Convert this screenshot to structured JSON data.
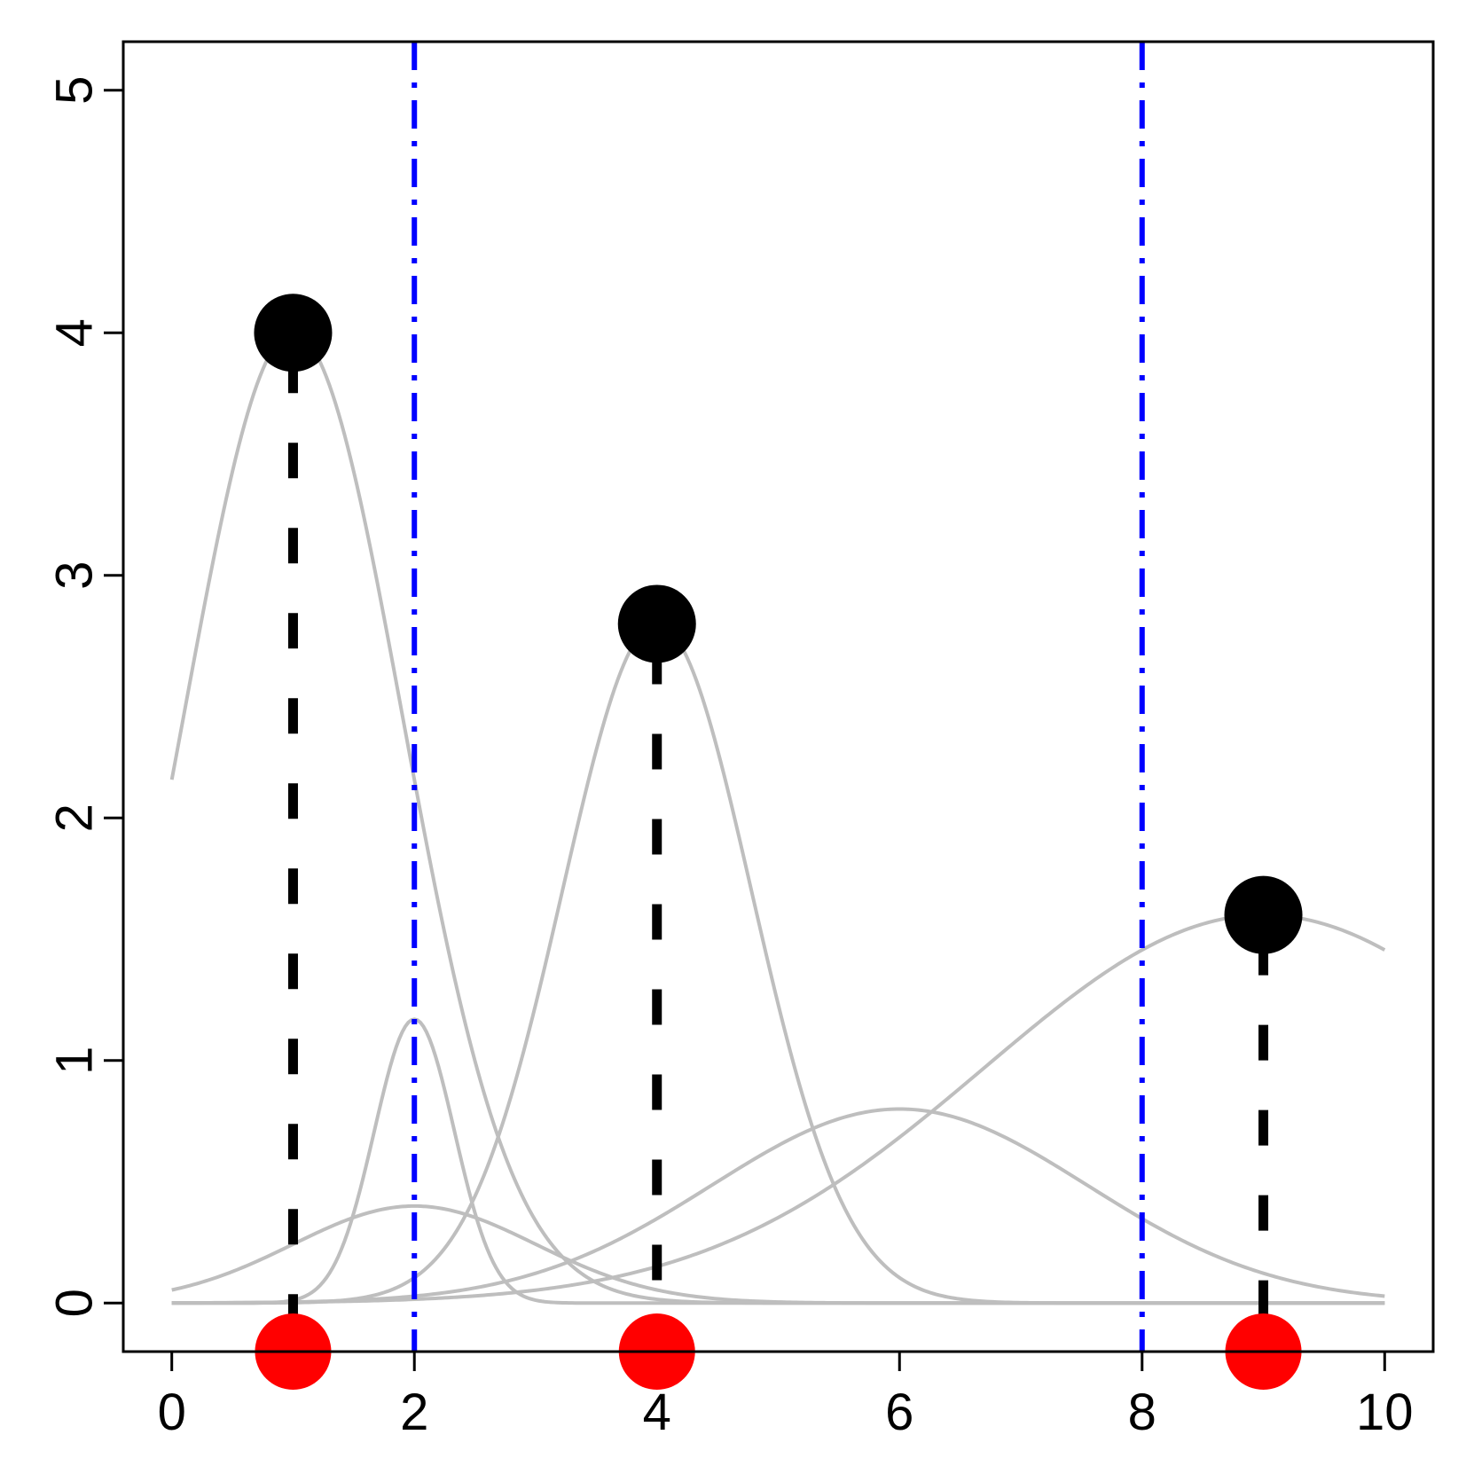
{
  "chart_data": {
    "type": "line",
    "title": "",
    "xlabel": "",
    "ylabel": "",
    "xlim": [
      -0.4,
      10.4
    ],
    "ylim": [
      -0.2,
      5.2
    ],
    "grid": false,
    "legend": "none",
    "x_ticks": [
      "0",
      "2",
      "4",
      "6",
      "8",
      "10"
    ],
    "y_ticks": [
      "0",
      "1",
      "2",
      "3",
      "4",
      "5"
    ],
    "colors": {
      "curves": "#bebebe",
      "peaks": "#000000",
      "stems": "#000000",
      "base_points": "#ff0000",
      "vlines": "#0000ff"
    },
    "curves": [
      {
        "kind": "gaussian",
        "mean": 1,
        "amplitude": 4,
        "sd": 0.9
      },
      {
        "kind": "gaussian",
        "mean": 4,
        "amplitude": 2.8,
        "sd": 0.78
      },
      {
        "kind": "gaussian",
        "mean": 9,
        "amplitude": 1.6,
        "sd": 2.3
      },
      {
        "kind": "gaussian",
        "mean": 2,
        "amplitude": 1.17,
        "sd": 0.33
      },
      {
        "kind": "gaussian",
        "mean": 2,
        "amplitude": 0.4,
        "sd": 1.0
      },
      {
        "kind": "gaussian",
        "mean": 6,
        "amplitude": 0.8,
        "sd": 1.55
      }
    ],
    "peaks": [
      {
        "x": 1,
        "y": 4
      },
      {
        "x": 4,
        "y": 2.8
      },
      {
        "x": 9,
        "y": 1.6
      }
    ],
    "base_points": [
      {
        "x": 1,
        "y": -0.2
      },
      {
        "x": 4,
        "y": -0.2
      },
      {
        "x": 9,
        "y": -0.2
      }
    ],
    "vlines": [
      2,
      8
    ]
  }
}
